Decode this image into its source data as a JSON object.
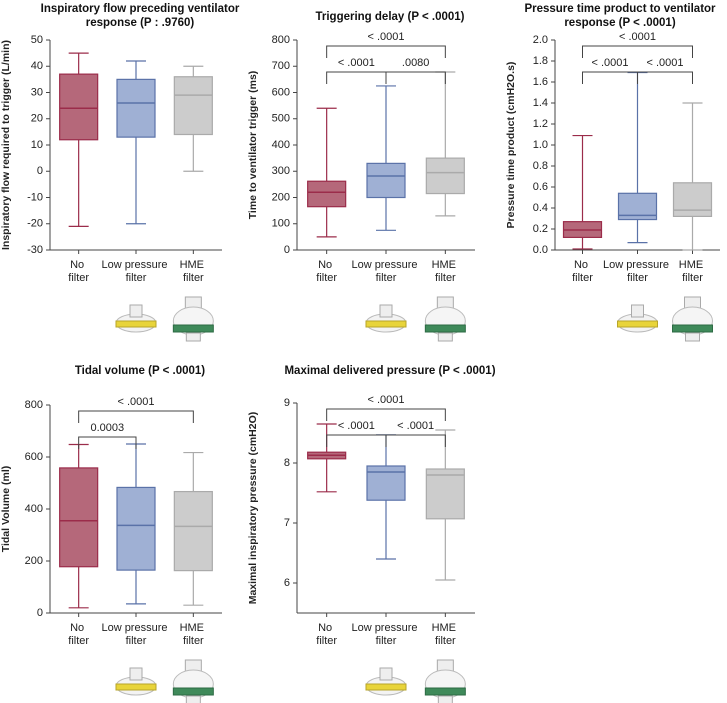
{
  "chart_data": [
    {
      "type": "box",
      "title": "Inspiratory flow preceding ventilator response (P : .9760)",
      "y_label": "Inspiratory flow required to trigger (L/min)",
      "categories": [
        "No filter",
        "Low pressure filter",
        "HME filter"
      ],
      "boxes": [
        {
          "whisker_low": -21,
          "q1": 12,
          "median": 24,
          "q3": 37,
          "whisker_high": 45,
          "color": "#b5687a",
          "edge_color": "#9b2c4a"
        },
        {
          "whisker_low": -20,
          "q1": 13,
          "median": 26,
          "q3": 35,
          "whisker_high": 42,
          "color": "#9fb0d4",
          "edge_color": "#5a72a8"
        },
        {
          "whisker_low": 0,
          "q1": 14,
          "median": 29,
          "q3": 36,
          "whisker_high": 40,
          "color": "#cccccc",
          "edge_color": "#aaaaaa"
        }
      ],
      "ylim": [
        -30,
        50
      ],
      "yticks": [
        -30,
        -20,
        -10,
        0,
        10,
        20,
        30,
        40,
        50
      ],
      "comparisons": []
    },
    {
      "type": "box",
      "title": "Triggering delay (P < .0001)",
      "y_label": "Time to ventilator trigger (ms)",
      "categories": [
        "No filter",
        "Low pressure filter",
        "HME filter"
      ],
      "boxes": [
        {
          "whisker_low": 50,
          "q1": 165,
          "median": 220,
          "q3": 262,
          "whisker_high": 540,
          "color": "#b5687a",
          "edge_color": "#9b2c4a"
        },
        {
          "whisker_low": 75,
          "q1": 200,
          "median": 282,
          "q3": 330,
          "whisker_high": 625,
          "color": "#9fb0d4",
          "edge_color": "#5a72a8"
        },
        {
          "whisker_low": 130,
          "q1": 215,
          "median": 295,
          "q3": 350,
          "whisker_high": 678,
          "color": "#cccccc",
          "edge_color": "#aaaaaa"
        }
      ],
      "ylim": [
        0,
        800
      ],
      "yticks": [
        0,
        100,
        200,
        300,
        400,
        500,
        600,
        700,
        800
      ],
      "comparisons": [
        {
          "pair": [
            0,
            1
          ],
          "label": "< .0001"
        },
        {
          "pair": [
            1,
            2
          ],
          "label": ".0080"
        },
        {
          "pair": [
            0,
            2
          ],
          "label": "< .0001"
        }
      ]
    },
    {
      "type": "box",
      "title": "Pressure time product to ventilator response (P < .0001)",
      "y_label": "Pressure time product (cmH2O.s)",
      "categories": [
        "No filter",
        "Low pressure filter",
        "HME filter"
      ],
      "boxes": [
        {
          "whisker_low": 0.01,
          "q1": 0.12,
          "median": 0.19,
          "q3": 0.27,
          "whisker_high": 1.09,
          "color": "#b5687a",
          "edge_color": "#9b2c4a"
        },
        {
          "whisker_low": 0.07,
          "q1": 0.29,
          "median": 0.33,
          "q3": 0.54,
          "whisker_high": 1.69,
          "color": "#9fb0d4",
          "edge_color": "#5a72a8"
        },
        {
          "whisker_low": 0,
          "q1": 0.32,
          "median": 0.38,
          "q3": 0.64,
          "whisker_high": 1.4,
          "color": "#cccccc",
          "edge_color": "#aaaaaa"
        }
      ],
      "ylim": [
        0,
        2
      ],
      "yticks": [
        {
          "value": 0,
          "label": "0.0"
        },
        0.2,
        0.4,
        0.6,
        0.8,
        {
          "value": 1,
          "label": "1.0"
        },
        1.2,
        1.4,
        1.6,
        1.8,
        {
          "value": 2,
          "label": "2.0"
        }
      ],
      "comparisons": [
        {
          "pair": [
            0,
            1
          ],
          "label": "< .0001"
        },
        {
          "pair": [
            1,
            2
          ],
          "label": "< .0001"
        },
        {
          "pair": [
            0,
            2
          ],
          "label": "< .0001"
        }
      ]
    },
    {
      "type": "box",
      "title": "Tidal volume (P < .0001)",
      "y_label": "Tidal Volume (ml)",
      "categories": [
        "No filter",
        "Low pressure filter",
        "HME filter"
      ],
      "boxes": [
        {
          "whisker_low": 20,
          "q1": 178,
          "median": 355,
          "q3": 558,
          "whisker_high": 648,
          "color": "#b5687a",
          "edge_color": "#9b2c4a"
        },
        {
          "whisker_low": 35,
          "q1": 165,
          "median": 337,
          "q3": 483,
          "whisker_high": 650,
          "color": "#9fb0d4",
          "edge_color": "#5a72a8"
        },
        {
          "whisker_low": 30,
          "q1": 163,
          "median": 333,
          "q3": 467,
          "whisker_high": 617,
          "color": "#cccccc",
          "edge_color": "#aaaaaa"
        }
      ],
      "ylim": [
        0,
        800
      ],
      "yticks": [
        0,
        200,
        400,
        600,
        800
      ],
      "comparisons": [
        {
          "pair": [
            0,
            1
          ],
          "label": "0.0003"
        },
        {
          "pair": [
            0,
            2
          ],
          "label": "< .0001"
        }
      ]
    },
    {
      "type": "box",
      "title": "Maximal delivered pressure (P < .0001)",
      "y_label": "Maximal inspiratory pressure (cmH2O)",
      "categories": [
        "No filter",
        "Low pressure filter",
        "HME filter"
      ],
      "boxes": [
        {
          "whisker_low": 7.52,
          "q1": 8.07,
          "median": 8.13,
          "q3": 8.18,
          "whisker_high": 8.65,
          "color": "#b5687a",
          "edge_color": "#9b2c4a"
        },
        {
          "whisker_low": 6.4,
          "q1": 7.38,
          "median": 7.85,
          "q3": 7.95,
          "whisker_high": 8.47,
          "color": "#9fb0d4",
          "edge_color": "#5a72a8"
        },
        {
          "whisker_low": 6.05,
          "q1": 7.07,
          "median": 7.8,
          "q3": 7.9,
          "whisker_high": 8.55,
          "color": "#cccccc",
          "edge_color": "#aaaaaa"
        }
      ],
      "ylim": [
        5.5,
        9
      ],
      "yticks": [
        6,
        7,
        8,
        9
      ],
      "comparisons": [
        {
          "pair": [
            0,
            1
          ],
          "label": "< .0001"
        },
        {
          "pair": [
            1,
            2
          ],
          "label": "< .0001"
        },
        {
          "pair": [
            0,
            2
          ],
          "label": "< .0001"
        }
      ]
    }
  ]
}
